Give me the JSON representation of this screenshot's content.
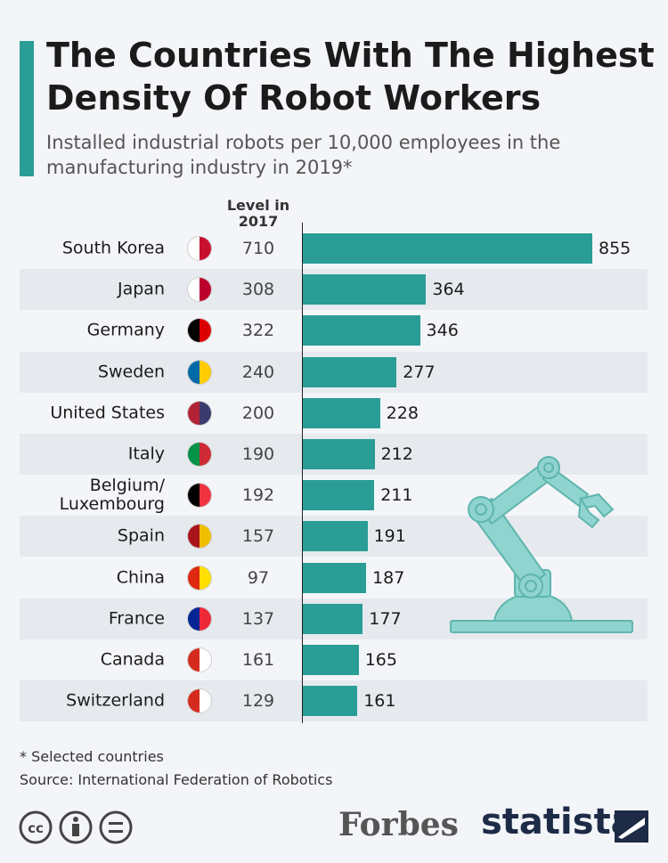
{
  "chart_data": {
    "type": "bar",
    "title": "The Countries With The Highest Density Of Robot Workers",
    "subtitle": "Installed industrial robots per 10,000 employees in the manufacturing industry in 2019*",
    "level_header": "Level in 2017",
    "categories": [
      "South Korea",
      "Japan",
      "Germany",
      "Sweden",
      "United States",
      "Italy",
      "Belgium/ Luxembourg",
      "Spain",
      "China",
      "France",
      "Canada",
      "Switzerland"
    ],
    "values": [
      855,
      364,
      346,
      277,
      228,
      212,
      211,
      191,
      187,
      177,
      165,
      161
    ],
    "level_2017": [
      710,
      308,
      322,
      240,
      200,
      190,
      192,
      157,
      97,
      137,
      161,
      129
    ],
    "color": "#2a9d96"
  },
  "footnote": "* Selected countries",
  "source": "Source: International Federation of Robotics",
  "publisher": "Forbes",
  "brand": "statista"
}
